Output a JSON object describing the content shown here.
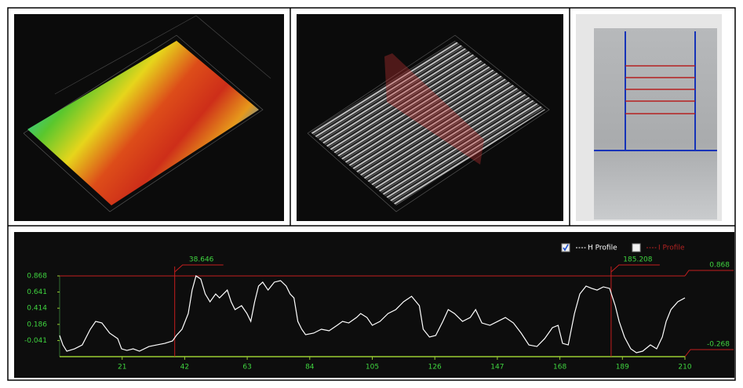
{
  "chart_data": {
    "type": "line",
    "xlim": [
      0,
      210
    ],
    "xticks": [
      21.0,
      42.0,
      63.0,
      84.0,
      105.0,
      126.0,
      147.0,
      168.0,
      189.0,
      210.0
    ],
    "ylim": [
      -0.268,
      0.868
    ],
    "yticks": [
      0.868,
      0.641,
      0.414,
      0.186,
      -0.041
    ],
    "markers_x": [
      38.646,
      185.208
    ],
    "markers_y": [
      0.868,
      -0.268
    ],
    "x": [
      0,
      1.1,
      2.4,
      5.0,
      7.6,
      10.3,
      12.1,
      14.2,
      16.8,
      19.5,
      20.8,
      22.6,
      24.7,
      26.8,
      30.0,
      32.6,
      35.3,
      37.9,
      39.2,
      41.1,
      43.2,
      44.5,
      45.8,
      47.4,
      48.9,
      50.5,
      52.4,
      53.7,
      56.3,
      57.6,
      58.9,
      61.1,
      62.9,
      64.2,
      65.5,
      66.8,
      68.2,
      70.0,
      72.1,
      74.2,
      76.1,
      77.4,
      78.7,
      80.0,
      81.3,
      82.6,
      85.3,
      87.9,
      90.5,
      93.2,
      95.0,
      97.1,
      99.7,
      101.1,
      103.2,
      105.0,
      107.6,
      110.3,
      112.9,
      115.5,
      118.2,
      120.8,
      122.1,
      124.2,
      126.3,
      128.7,
      130.5,
      132.6,
      135.3,
      137.9,
      139.7,
      141.8,
      144.5,
      147.1,
      149.7,
      152.4,
      155.0,
      157.6,
      160.3,
      162.9,
      165.5,
      167.4,
      168.9,
      170.8,
      172.9,
      174.7,
      176.8,
      178.7,
      180.5,
      182.6,
      184.7,
      186.6,
      187.9,
      189.7,
      191.8,
      193.7,
      195.8,
      198.4,
      200.5,
      202.4,
      203.7,
      205.3,
      207.6,
      210
    ],
    "series": [
      {
        "name": "H Profile",
        "color": "#ffffff",
        "checked": true,
        "values": [
          0.03,
          -0.103,
          -0.191,
          -0.158,
          -0.103,
          0.118,
          0.228,
          0.206,
          0.063,
          -0.014,
          -0.158,
          -0.18,
          -0.158,
          -0.191,
          -0.125,
          -0.103,
          -0.081,
          -0.047,
          0.03,
          0.118,
          0.339,
          0.669,
          0.868,
          0.824,
          0.614,
          0.504,
          0.614,
          0.559,
          0.669,
          0.504,
          0.394,
          0.449,
          0.339,
          0.228,
          0.504,
          0.725,
          0.78,
          0.669,
          0.78,
          0.802,
          0.725,
          0.614,
          0.559,
          0.228,
          0.118,
          0.041,
          0.063,
          0.118,
          0.096,
          0.173,
          0.228,
          0.206,
          0.283,
          0.339,
          0.283,
          0.173,
          0.228,
          0.339,
          0.394,
          0.504,
          0.581,
          0.449,
          0.118,
          0.008,
          0.03,
          0.228,
          0.394,
          0.339,
          0.228,
          0.283,
          0.394,
          0.206,
          0.173,
          0.228,
          0.283,
          0.206,
          0.063,
          -0.103,
          -0.125,
          -0.014,
          0.14,
          0.173,
          -0.081,
          -0.103,
          0.339,
          0.614,
          0.725,
          0.692,
          0.669,
          0.714,
          0.692,
          0.449,
          0.228,
          0.008,
          -0.158,
          -0.213,
          -0.191,
          -0.103,
          -0.158,
          0.008,
          0.228,
          0.394,
          0.504,
          0.559
        ]
      }
    ],
    "inactive_series": [
      {
        "name": "I Profile",
        "color": "#b22222",
        "checked": false
      }
    ]
  }
}
